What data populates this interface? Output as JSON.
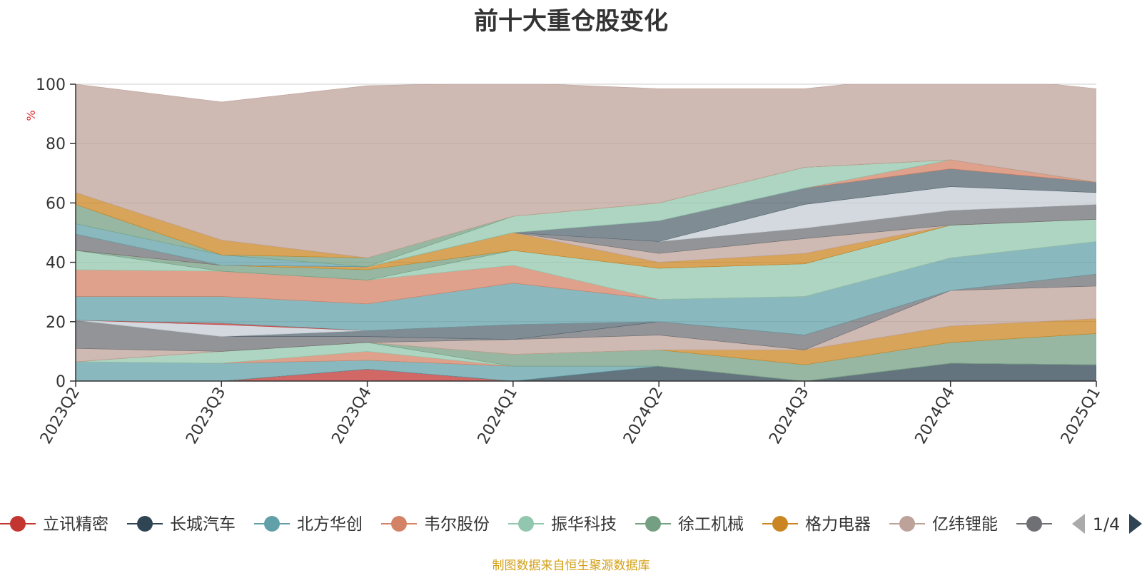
{
  "title": "前十大重仓股变化",
  "footer": "制图数据来自恒生聚源数据库",
  "pager": {
    "text": "1/4",
    "prev_icon": "triangle-left-icon",
    "next_icon": "triangle-right-icon"
  },
  "chart_data": {
    "type": "area",
    "stacked": true,
    "ylabel": "%",
    "ylim": [
      0,
      100
    ],
    "yticks": [
      0,
      20,
      40,
      60,
      80,
      100
    ],
    "grid": true,
    "legend_position": "bottom",
    "categories": [
      "2023Q2",
      "2023Q3",
      "2023Q4",
      "2024Q1",
      "2024Q2",
      "2024Q3",
      "2024Q4",
      "2025Q1"
    ],
    "series": [
      {
        "name": "立讯精密",
        "color": "#c23531",
        "values": [
          0,
          0,
          4,
          0,
          0,
          0,
          0,
          0
        ]
      },
      {
        "name": "长城汽车",
        "color": "#2f4554",
        "values": [
          0,
          0,
          0,
          0,
          5,
          0,
          6,
          5.5
        ]
      },
      {
        "name": "北方华创",
        "color": "#61a0a8",
        "values": [
          6.5,
          6,
          3,
          5,
          0,
          0,
          0,
          0
        ]
      },
      {
        "name": "韦尔股份",
        "color": "#d48265",
        "values": [
          0,
          0,
          3,
          0,
          0,
          0,
          0,
          0
        ]
      },
      {
        "name": "振华科技",
        "color": "#91c7ae",
        "values": [
          0,
          4,
          3,
          0,
          0,
          0,
          0,
          0
        ]
      },
      {
        "name": "徐工机械",
        "color": "#749f83",
        "values": [
          0,
          0,
          0,
          4,
          5.5,
          5.5,
          7,
          10.5
        ]
      },
      {
        "name": "格力电器",
        "color": "#ca8622",
        "values": [
          0,
          0,
          0,
          0,
          0,
          5,
          5.5,
          5
        ]
      },
      {
        "name": "亿纬锂能",
        "color": "#bda29a",
        "values": [
          4.5,
          0,
          0,
          5,
          5,
          0,
          12,
          11
        ]
      },
      {
        "name": "",
        "color": "#6e7074",
        "values": [
          9.5,
          5,
          2,
          0,
          4.5,
          5,
          0,
          4
        ]
      },
      {
        "name": "",
        "color": "#546570",
        "values": [
          0,
          0,
          2,
          5,
          0,
          0,
          0,
          0
        ]
      },
      {
        "name": "",
        "color": "#c4ccd3",
        "values": [
          0,
          4,
          0,
          0,
          0,
          0,
          0,
          0
        ]
      },
      {
        "name": "",
        "color": "#c23531",
        "values": [
          0,
          0.5,
          0,
          0,
          0,
          0,
          0,
          0
        ]
      },
      {
        "name": "",
        "color": "#61a0a8",
        "values": [
          8,
          9,
          9,
          14,
          7.5,
          13,
          11,
          11
        ]
      },
      {
        "name": "",
        "color": "#d48265",
        "values": [
          9,
          8.5,
          8,
          6,
          0,
          0,
          0,
          0
        ]
      },
      {
        "name": "",
        "color": "#91c7ae",
        "values": [
          6.5,
          0,
          0,
          5,
          10.5,
          11,
          11,
          7.5
        ]
      },
      {
        "name": "",
        "color": "#749f83",
        "values": [
          0,
          2,
          3.5,
          0,
          0,
          0,
          0,
          0
        ]
      },
      {
        "name": "",
        "color": "#ca8622",
        "values": [
          0,
          0,
          1,
          6,
          2,
          3.5,
          0,
          0
        ]
      },
      {
        "name": "",
        "color": "#bda29a",
        "values": [
          0,
          0,
          0,
          0,
          3,
          5,
          0,
          0
        ]
      },
      {
        "name": "",
        "color": "#6e7074",
        "values": [
          5.5,
          0,
          0,
          0,
          4,
          3.5,
          5,
          5
        ]
      },
      {
        "name": "",
        "color": "#c4ccd3",
        "values": [
          0,
          0,
          0,
          0,
          0,
          8,
          8,
          4
        ]
      },
      {
        "name": "",
        "color": "#546570",
        "values": [
          0,
          0,
          0,
          0,
          7,
          5.5,
          6,
          3.5
        ]
      },
      {
        "name": "",
        "color": "#d48265",
        "values": [
          0,
          0,
          0,
          0,
          0,
          0,
          3,
          0
        ]
      },
      {
        "name": "",
        "color": "#61a0a8",
        "values": [
          3.5,
          3.5,
          0,
          0,
          0,
          0,
          0,
          0
        ]
      },
      {
        "name": "",
        "color": "#91c7ae",
        "values": [
          0,
          0,
          0,
          5.5,
          6,
          7,
          0,
          0
        ]
      },
      {
        "name": "",
        "color": "#749f83",
        "values": [
          6.5,
          0,
          3,
          0,
          0,
          0,
          0,
          0
        ]
      },
      {
        "name": "",
        "color": "#ca8622",
        "values": [
          4,
          5,
          0,
          0,
          0,
          0,
          0,
          0
        ]
      },
      {
        "name": "",
        "color": "#bda29a",
        "values": [
          36.5,
          46.5,
          58,
          45,
          38.5,
          26.5,
          29,
          31.5
        ]
      }
    ],
    "visible_legend": [
      "立讯精密",
      "长城汽车",
      "北方华创",
      "韦尔股份",
      "振华科技",
      "徐工机械",
      "格力电器",
      "亿纬锂能",
      "["
    ]
  }
}
